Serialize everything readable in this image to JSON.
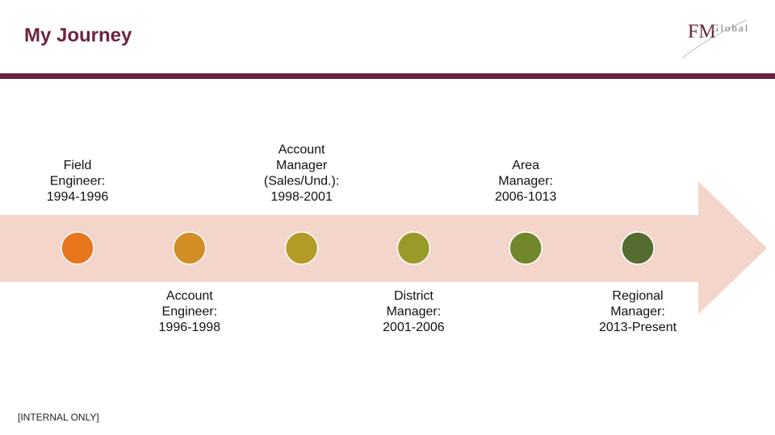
{
  "header": {
    "title": "My Journey",
    "logo": {
      "mark": "FM",
      "word": "Global"
    }
  },
  "footer": "[INTERNAL ONLY]",
  "milestones": [
    {
      "lines": [
        "Field",
        "Engineer:",
        "1994-1996"
      ],
      "color": "#e8761e"
    },
    {
      "lines": [
        "Account",
        "Engineer:",
        "1996-1998"
      ],
      "color": "#d18e26"
    },
    {
      "lines": [
        "Account",
        "Manager",
        "(Sales/Und.):",
        "1998-2001"
      ],
      "color": "#b49a27"
    },
    {
      "lines": [
        "District",
        "Manager:",
        "2001-2006"
      ],
      "color": "#9a9a2b"
    },
    {
      "lines": [
        "Area",
        "Manager:",
        "2006-1013"
      ],
      "color": "#72862b"
    },
    {
      "lines": [
        "Regional",
        "Manager:",
        "2013-Present"
      ],
      "color": "#556b30"
    }
  ]
}
